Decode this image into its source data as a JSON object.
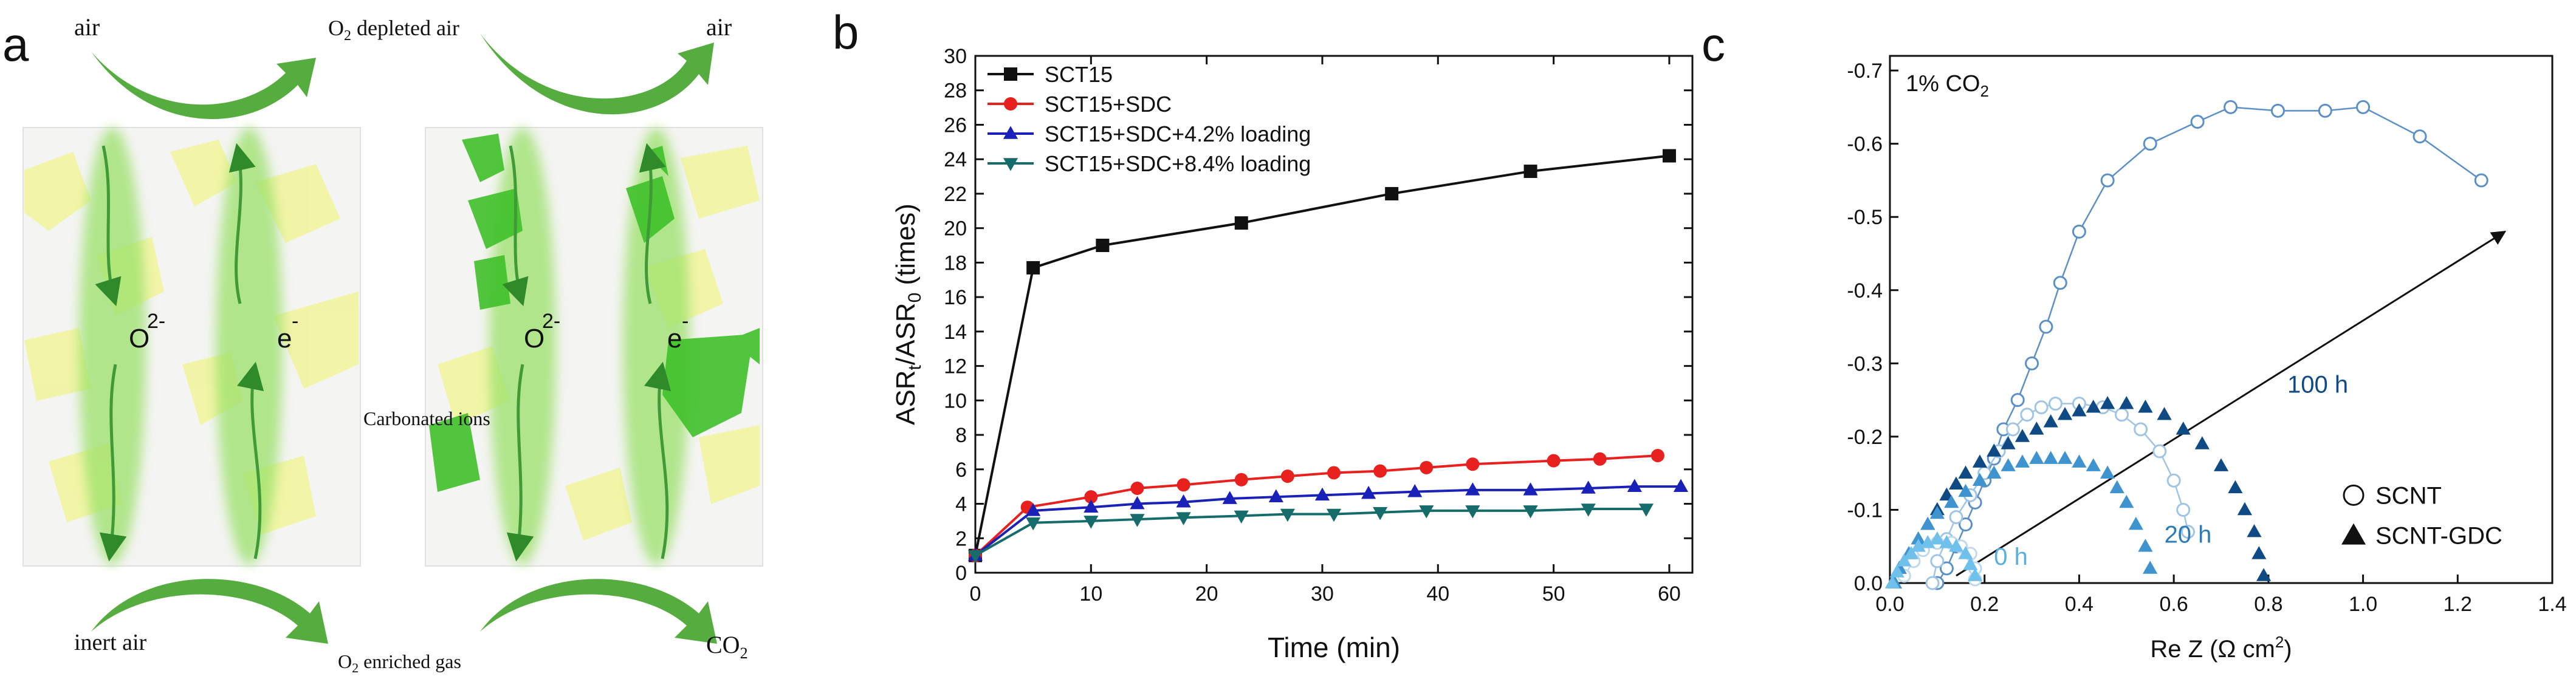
{
  "panels": {
    "a": {
      "letter": "a",
      "label_air_left": "air",
      "label_o2_depleted": "O",
      "label_o2_depleted_sub": "2",
      "label_o2_depleted_rest": " depleted air",
      "label_air_right": "air",
      "label_inert_air": "inert air",
      "label_o2_enriched": "O",
      "label_o2_enriched_sub": "2",
      "label_o2_enriched_rest": " enriched gas",
      "label_co2": "CO",
      "label_co2_sub": "2",
      "label_carbonated": "Carbonated ions",
      "ion_o": "O",
      "ion_o_sup": "2-",
      "ion_e": "e",
      "ion_e_sup": "-",
      "colors": {
        "arrow": "#4ea83a",
        "glow": "#8fdb5e",
        "grain": "#f2f5a0",
        "carbonate": "#3fc02a"
      }
    },
    "b": {
      "letter": "b",
      "xlabel": "Time (min)",
      "ylabel_main": "ASR",
      "ylabel_sub1": "t",
      "ylabel_mid": "/ASR",
      "ylabel_sub2": "0",
      "ylabel_tail": " (times)"
    },
    "c": {
      "letter": "c",
      "annotation": "1% CO",
      "annotation_sub": "2",
      "xlabel": "Re Z (Ω cm",
      "xlabel_sup": "2",
      "xlabel_tail": ")",
      "label_100h": "100 h",
      "label_20h": "20 h",
      "label_0h": "0 h",
      "legend_scnt": "SCNT",
      "legend_scnt_gdc": "SCNT-GDC",
      "colors": {
        "dark": "#0f4a85",
        "mid": "#2b7bb9",
        "light": "#5aaee0",
        "scnt": "#5a8fc7"
      }
    }
  },
  "chart_data": [
    {
      "type": "line",
      "panel": "b",
      "xlabel": "Time (min)",
      "ylabel": "ASRt/ASR0 (times)",
      "xlim": [
        0,
        62
      ],
      "ylim": [
        0,
        30
      ],
      "xticks": [
        0,
        10,
        20,
        30,
        40,
        50,
        60
      ],
      "yticks": [
        0,
        2,
        4,
        6,
        8,
        10,
        12,
        14,
        16,
        18,
        20,
        22,
        24,
        26,
        28,
        30
      ],
      "legend_position": "top-left",
      "series": [
        {
          "name": "SCT15",
          "color": "#111111",
          "marker": "square",
          "x": [
            0,
            5,
            11,
            23,
            36,
            48,
            60
          ],
          "y": [
            1.0,
            17.7,
            19.0,
            20.3,
            22.0,
            23.3,
            24.2
          ]
        },
        {
          "name": "SCT15+SDC",
          "color": "#e8201e",
          "marker": "circle",
          "x": [
            0,
            4.5,
            10,
            14,
            18,
            23,
            27,
            31,
            35,
            39,
            43,
            50,
            54,
            59
          ],
          "y": [
            1.0,
            3.8,
            4.4,
            4.9,
            5.1,
            5.4,
            5.6,
            5.8,
            5.9,
            6.1,
            6.3,
            6.5,
            6.6,
            6.8
          ]
        },
        {
          "name": "SCT15+SDC+4.2% loading",
          "color": "#1a21b8",
          "marker": "triangle-up",
          "x": [
            0,
            5,
            10,
            14,
            18,
            22,
            26,
            30,
            34,
            38,
            43,
            48,
            53,
            57,
            61
          ],
          "y": [
            1.0,
            3.6,
            3.8,
            4.0,
            4.1,
            4.3,
            4.4,
            4.5,
            4.6,
            4.7,
            4.8,
            4.8,
            4.9,
            5.0,
            5.0
          ]
        },
        {
          "name": "SCT15+SDC+8.4% loading",
          "color": "#166b6b",
          "marker": "triangle-down",
          "x": [
            0,
            5,
            10,
            14,
            18,
            23,
            27,
            31,
            35,
            39,
            43,
            48,
            53,
            58
          ],
          "y": [
            1.0,
            2.9,
            3.0,
            3.1,
            3.2,
            3.3,
            3.4,
            3.4,
            3.5,
            3.6,
            3.6,
            3.6,
            3.7,
            3.7
          ]
        }
      ]
    },
    {
      "type": "scatter",
      "panel": "c",
      "xlabel": "Re Z (Ω cm2)",
      "ylabel": "",
      "xlim": [
        0,
        1.4
      ],
      "ylim": [
        0,
        -0.72
      ],
      "xticks": [
        0.0,
        0.2,
        0.4,
        0.6,
        0.8,
        1.0,
        1.2,
        1.4
      ],
      "yticks": [
        0.0,
        -0.1,
        -0.2,
        -0.3,
        -0.4,
        -0.5,
        -0.6,
        -0.7
      ],
      "annotations": [
        "1% CO2",
        "100 h",
        "20 h",
        "0 h"
      ],
      "legend_position": "bottom-right",
      "series": [
        {
          "name": "SCNT",
          "group": "SCNT 100 h",
          "marker": "open-circle",
          "color": "#5a8fc7",
          "line": true,
          "points": [
            [
              0.1,
              0.0
            ],
            [
              0.12,
              -0.02
            ],
            [
              0.14,
              -0.05
            ],
            [
              0.16,
              -0.08
            ],
            [
              0.18,
              -0.11
            ],
            [
              0.2,
              -0.14
            ],
            [
              0.22,
              -0.17
            ],
            [
              0.24,
              -0.21
            ],
            [
              0.27,
              -0.25
            ],
            [
              0.3,
              -0.3
            ],
            [
              0.33,
              -0.35
            ],
            [
              0.36,
              -0.41
            ],
            [
              0.4,
              -0.48
            ],
            [
              0.46,
              -0.55
            ],
            [
              0.55,
              -0.6
            ],
            [
              0.65,
              -0.63
            ],
            [
              0.72,
              -0.65
            ],
            [
              0.82,
              -0.645
            ],
            [
              0.92,
              -0.645
            ],
            [
              1.0,
              -0.65
            ],
            [
              1.12,
              -0.61
            ],
            [
              1.25,
              -0.55
            ]
          ]
        },
        {
          "name": "SCNT",
          "group": "SCNT 20 h",
          "marker": "open-circle",
          "color": "#9fc4e4",
          "line": true,
          "points": [
            [
              0.09,
              0.0
            ],
            [
              0.1,
              -0.03
            ],
            [
              0.12,
              -0.06
            ],
            [
              0.14,
              -0.09
            ],
            [
              0.17,
              -0.12
            ],
            [
              0.2,
              -0.15
            ],
            [
              0.23,
              -0.18
            ],
            [
              0.26,
              -0.21
            ],
            [
              0.29,
              -0.23
            ],
            [
              0.32,
              -0.24
            ],
            [
              0.35,
              -0.245
            ],
            [
              0.4,
              -0.245
            ],
            [
              0.45,
              -0.24
            ],
            [
              0.49,
              -0.23
            ],
            [
              0.53,
              -0.21
            ],
            [
              0.57,
              -0.18
            ],
            [
              0.6,
              -0.14
            ],
            [
              0.62,
              -0.1
            ],
            [
              0.63,
              -0.07
            ]
          ]
        },
        {
          "name": "SCNT",
          "group": "SCNT 0 h",
          "marker": "open-circle",
          "color": "#bcd9ef",
          "line": true,
          "points": [
            [
              0.03,
              -0.01
            ],
            [
              0.05,
              -0.03
            ],
            [
              0.07,
              -0.045
            ],
            [
              0.1,
              -0.055
            ],
            [
              0.13,
              -0.055
            ],
            [
              0.15,
              -0.05
            ],
            [
              0.17,
              -0.04
            ],
            [
              0.18,
              -0.02
            ],
            [
              0.18,
              -0.005
            ]
          ]
        },
        {
          "name": "SCNT-GDC",
          "group": "SCNT-GDC 100 h",
          "marker": "filled-triangle",
          "color": "#0f4a85",
          "line": false,
          "points": [
            [
              0.01,
              0.0
            ],
            [
              0.02,
              -0.02
            ],
            [
              0.04,
              -0.04
            ],
            [
              0.06,
              -0.06
            ],
            [
              0.08,
              -0.08
            ],
            [
              0.1,
              -0.1
            ],
            [
              0.12,
              -0.12
            ],
            [
              0.14,
              -0.135
            ],
            [
              0.16,
              -0.15
            ],
            [
              0.19,
              -0.165
            ],
            [
              0.22,
              -0.18
            ],
            [
              0.25,
              -0.19
            ],
            [
              0.28,
              -0.2
            ],
            [
              0.31,
              -0.21
            ],
            [
              0.34,
              -0.22
            ],
            [
              0.37,
              -0.23
            ],
            [
              0.4,
              -0.235
            ],
            [
              0.43,
              -0.24
            ],
            [
              0.46,
              -0.245
            ],
            [
              0.5,
              -0.245
            ],
            [
              0.54,
              -0.24
            ],
            [
              0.58,
              -0.23
            ],
            [
              0.62,
              -0.21
            ],
            [
              0.66,
              -0.19
            ],
            [
              0.7,
              -0.16
            ],
            [
              0.73,
              -0.13
            ],
            [
              0.75,
              -0.1
            ],
            [
              0.77,
              -0.07
            ],
            [
              0.78,
              -0.04
            ],
            [
              0.79,
              -0.01
            ]
          ]
        },
        {
          "name": "SCNT-GDC",
          "group": "SCNT-GDC 20 h",
          "marker": "filled-triangle",
          "color": "#3f94cf",
          "line": false,
          "points": [
            [
              0.01,
              0.0
            ],
            [
              0.02,
              -0.02
            ],
            [
              0.04,
              -0.04
            ],
            [
              0.06,
              -0.06
            ],
            [
              0.08,
              -0.08
            ],
            [
              0.1,
              -0.095
            ],
            [
              0.13,
              -0.11
            ],
            [
              0.16,
              -0.125
            ],
            [
              0.19,
              -0.14
            ],
            [
              0.22,
              -0.15
            ],
            [
              0.25,
              -0.16
            ],
            [
              0.28,
              -0.165
            ],
            [
              0.31,
              -0.17
            ],
            [
              0.34,
              -0.17
            ],
            [
              0.37,
              -0.17
            ],
            [
              0.4,
              -0.165
            ],
            [
              0.43,
              -0.16
            ],
            [
              0.46,
              -0.15
            ],
            [
              0.48,
              -0.13
            ],
            [
              0.5,
              -0.11
            ],
            [
              0.52,
              -0.08
            ],
            [
              0.54,
              -0.05
            ],
            [
              0.55,
              -0.02
            ]
          ]
        },
        {
          "name": "SCNT-GDC",
          "group": "SCNT-GDC 0 h",
          "marker": "filled-triangle",
          "color": "#6fc1ec",
          "line": false,
          "points": [
            [
              0.005,
              0.0
            ],
            [
              0.015,
              -0.015
            ],
            [
              0.03,
              -0.03
            ],
            [
              0.045,
              -0.04
            ],
            [
              0.06,
              -0.05
            ],
            [
              0.08,
              -0.055
            ],
            [
              0.1,
              -0.06
            ],
            [
              0.12,
              -0.055
            ],
            [
              0.14,
              -0.05
            ],
            [
              0.16,
              -0.04
            ],
            [
              0.17,
              -0.025
            ],
            [
              0.18,
              -0.01
            ]
          ]
        }
      ],
      "arrow": {
        "from": [
          0.14,
          -0.01
        ],
        "to": [
          1.3,
          -0.48
        ]
      }
    }
  ]
}
